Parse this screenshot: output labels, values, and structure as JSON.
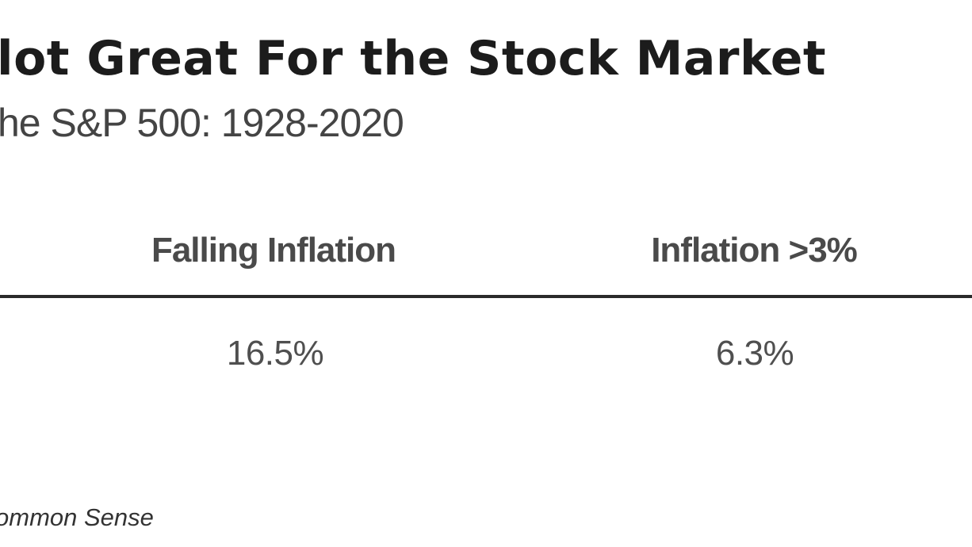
{
  "chart_data": {
    "type": "table",
    "title": "lot Great For the Stock Market",
    "subtitle": "he S&P 500: 1928-2020",
    "columns": [
      "Falling Inflation",
      "Inflation >3%"
    ],
    "rows": [
      {
        "values": [
          "16.5%",
          "6.3%"
        ]
      }
    ],
    "source": "ommon Sense"
  }
}
